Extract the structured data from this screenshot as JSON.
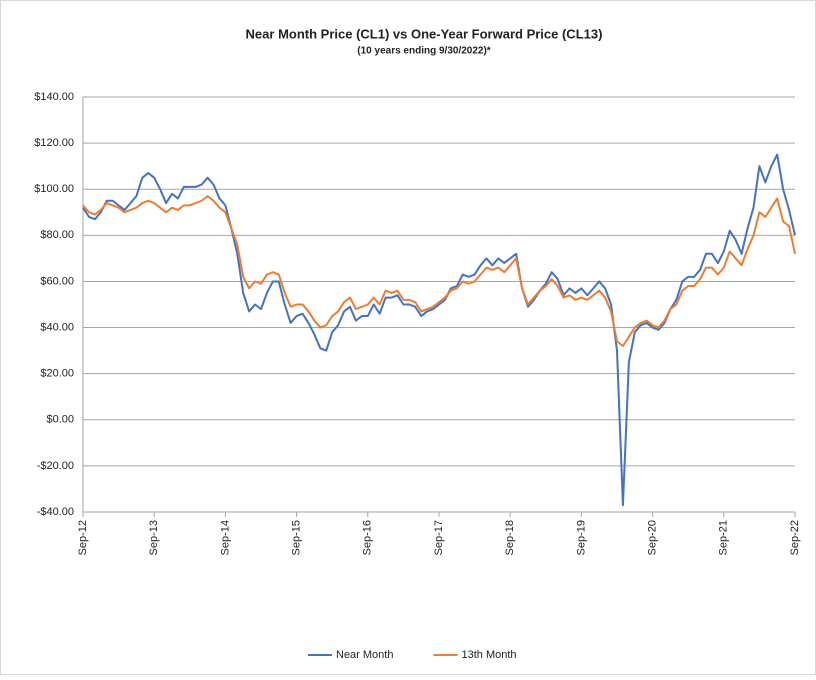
{
  "chart_data": {
    "type": "line",
    "title": "Near Month Price (CL1) vs One-Year Forward Price (CL13)",
    "subtitle": "(10 years ending  9/30/2022)*",
    "categories": [
      "Sep-12",
      null,
      null,
      null,
      null,
      null,
      null,
      null,
      null,
      null,
      null,
      null,
      "Sep-13",
      null,
      null,
      null,
      null,
      null,
      null,
      null,
      null,
      null,
      null,
      null,
      "Sep-14",
      null,
      null,
      null,
      null,
      null,
      null,
      null,
      null,
      null,
      null,
      null,
      "Sep-15",
      null,
      null,
      null,
      null,
      null,
      null,
      null,
      null,
      null,
      null,
      null,
      "Sep-16",
      null,
      null,
      null,
      null,
      null,
      null,
      null,
      null,
      null,
      null,
      null,
      "Sep-17",
      null,
      null,
      null,
      null,
      null,
      null,
      null,
      null,
      null,
      null,
      null,
      "Sep-18",
      null,
      null,
      null,
      null,
      null,
      null,
      null,
      null,
      null,
      null,
      null,
      "Sep-19",
      null,
      null,
      null,
      null,
      null,
      null,
      null,
      null,
      null,
      null,
      null,
      "Sep-20",
      null,
      null,
      null,
      null,
      null,
      null,
      null,
      null,
      null,
      null,
      null,
      "Sep-21",
      null,
      null,
      null,
      null,
      null,
      null,
      null,
      null,
      null,
      null,
      null,
      "Sep-22"
    ],
    "series": [
      {
        "name": "Near Month",
        "color": "#4472c4",
        "values": [
          92,
          88,
          87,
          90,
          95,
          95,
          93,
          91,
          94,
          97,
          105,
          107,
          105,
          100,
          94,
          98,
          96,
          101,
          101,
          101,
          102,
          105,
          102,
          96,
          93,
          83,
          72,
          55,
          47,
          50,
          48,
          55,
          60,
          60,
          50,
          42,
          45,
          46,
          42,
          37,
          31,
          30,
          38,
          41,
          47,
          49,
          43,
          45,
          45,
          50,
          46,
          53,
          53,
          54,
          50,
          50,
          49,
          45,
          47,
          48,
          50,
          52,
          57,
          58,
          63,
          62,
          63,
          67,
          70,
          67,
          70,
          68,
          70,
          72,
          57,
          49,
          52,
          56,
          59,
          64,
          61,
          54,
          57,
          55,
          57,
          54,
          57,
          60,
          57,
          50,
          30,
          -37,
          25,
          38,
          41,
          42,
          40,
          39,
          42,
          48,
          52,
          60,
          62,
          62,
          65,
          72,
          72,
          68,
          73,
          82,
          78,
          72,
          83,
          92,
          110,
          103,
          110,
          115,
          100,
          91,
          80
        ]
      },
      {
        "name": "13th Month",
        "color": "#ed7d31",
        "values": [
          93,
          90,
          89,
          91,
          94,
          93,
          92,
          90,
          91,
          92,
          94,
          95,
          94,
          92,
          90,
          92,
          91,
          93,
          93,
          94,
          95,
          97,
          95,
          92,
          90,
          83,
          76,
          62,
          57,
          60,
          59,
          63,
          64,
          63,
          55,
          49,
          50,
          50,
          47,
          43,
          40,
          41,
          45,
          47,
          51,
          53,
          48,
          49,
          50,
          53,
          50,
          56,
          55,
          56,
          52,
          52,
          51,
          47,
          48,
          49,
          51,
          53,
          56,
          57,
          60,
          59,
          60,
          63,
          66,
          65,
          66,
          64,
          67,
          70,
          57,
          50,
          53,
          56,
          58,
          61,
          58,
          53,
          54,
          52,
          53,
          52,
          54,
          56,
          53,
          47,
          34,
          32,
          36,
          40,
          42,
          43,
          41,
          40,
          43,
          48,
          50,
          56,
          58,
          58,
          61,
          66,
          66,
          63,
          66,
          73,
          70,
          67,
          74,
          80,
          90,
          88,
          92,
          96,
          86,
          84,
          72
        ]
      }
    ],
    "ylim": [
      -40,
      140
    ],
    "yticks": [
      {
        "value": -40,
        "label": "-$40.00"
      },
      {
        "value": -20,
        "label": "-$20.00"
      },
      {
        "value": 0,
        "label": "$0.00"
      },
      {
        "value": 20,
        "label": "$20.00"
      },
      {
        "value": 40,
        "label": "$40.00"
      },
      {
        "value": 60,
        "label": "$60.00"
      },
      {
        "value": 80,
        "label": "$80.00"
      },
      {
        "value": 100,
        "label": "$100.00"
      },
      {
        "value": 120,
        "label": "$120.00"
      },
      {
        "value": 140,
        "label": "$140.00"
      }
    ],
    "grid": true,
    "legend": "bottom"
  }
}
